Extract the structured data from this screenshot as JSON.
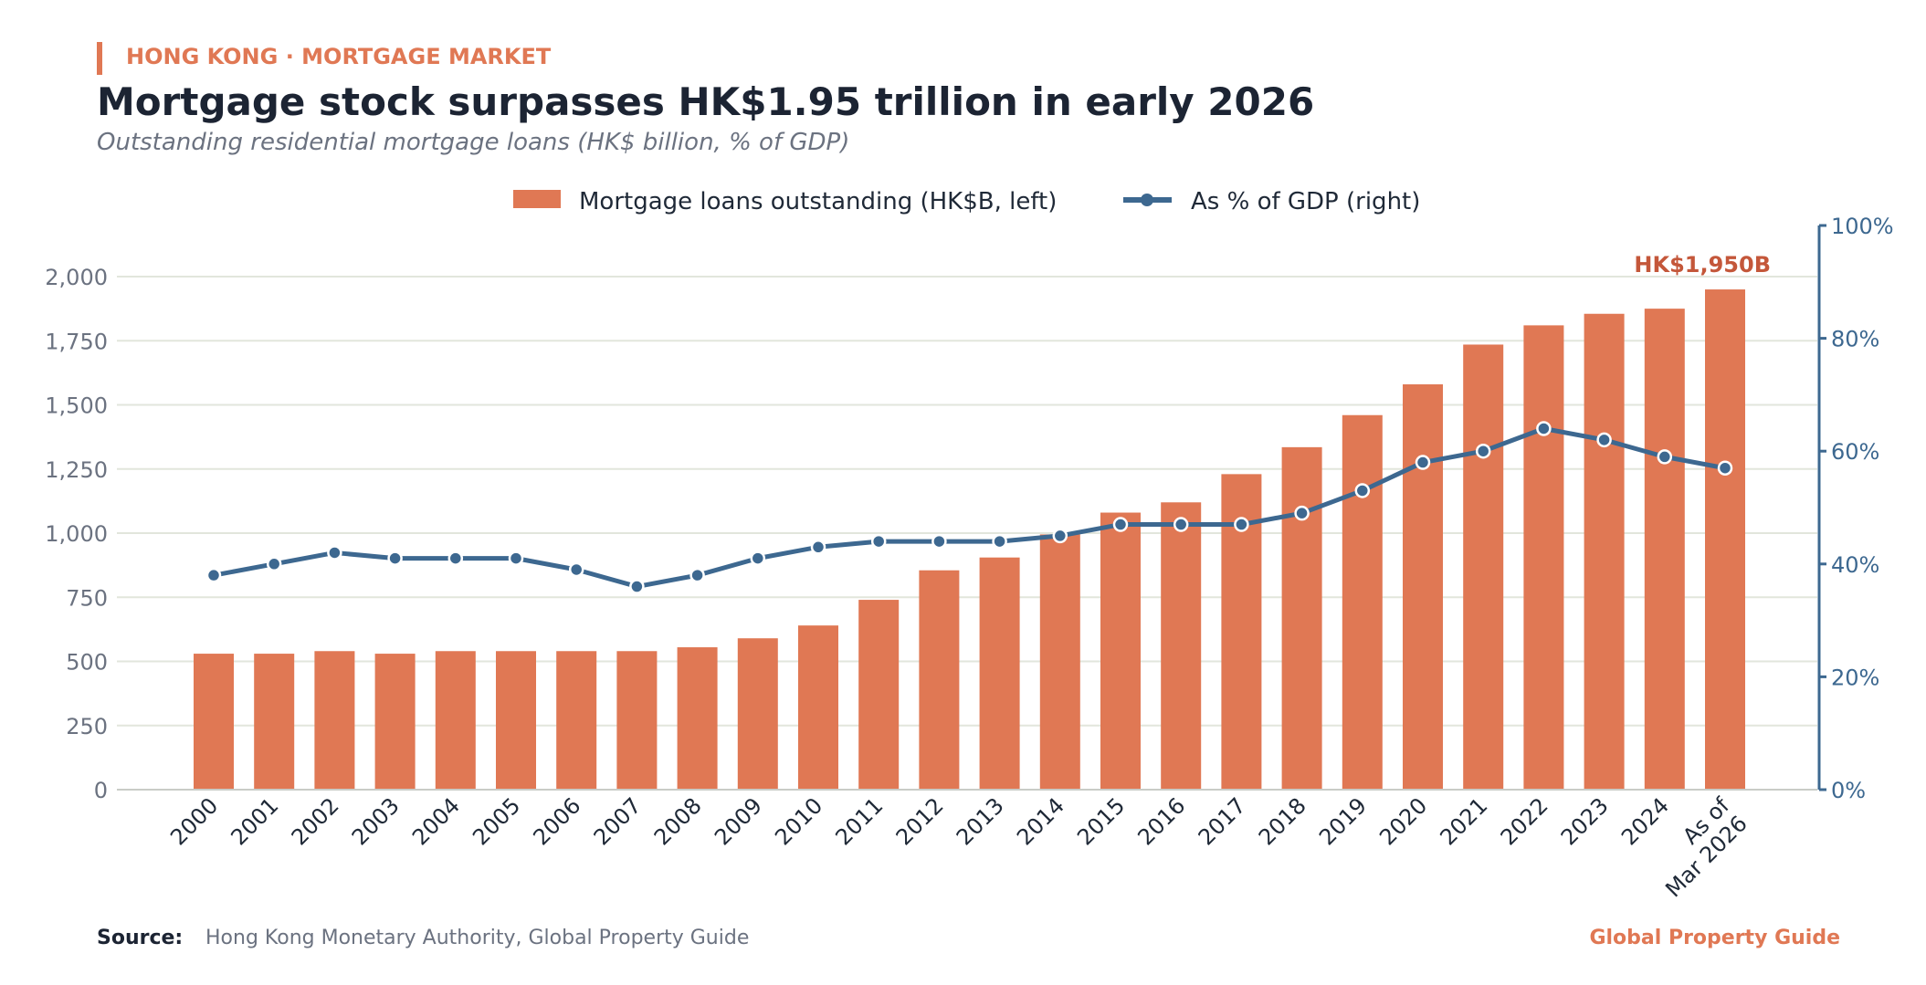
{
  "header": {
    "kicker": "HONG KONG · MORTGAGE MARKET",
    "title": "Mortgage stock surpasses HK$1.95 trillion in early 2026",
    "subtitle": "Outstanding residential mortgage loans (HK$ billion, % of GDP)"
  },
  "footer": {
    "source_label": "Source:",
    "source_text": "Hong Kong Monetary Authority, Global Property Guide",
    "brand": "Global Property Guide"
  },
  "colors": {
    "bar": "#e07854",
    "line": "#3d6890",
    "accent": "#e07854",
    "title": "#1c2433"
  },
  "chart_data": {
    "type": "bar",
    "categories": [
      "2000",
      "2001",
      "2002",
      "2003",
      "2004",
      "2005",
      "2006",
      "2007",
      "2008",
      "2009",
      "2010",
      "2011",
      "2012",
      "2013",
      "2014",
      "2015",
      "2016",
      "2017",
      "2018",
      "2019",
      "2020",
      "2021",
      "2022",
      "2023",
      "2024",
      "As of Mar 2026"
    ],
    "series": [
      {
        "name": "Mortgage loans outstanding (HK$B, left)",
        "type": "bar",
        "axis": "left",
        "values": [
          530,
          530,
          540,
          530,
          540,
          540,
          540,
          540,
          555,
          590,
          640,
          740,
          855,
          905,
          995,
          1080,
          1120,
          1230,
          1335,
          1460,
          1580,
          1735,
          1810,
          1855,
          1875,
          1950
        ]
      },
      {
        "name": "As % of GDP (right)",
        "type": "line",
        "axis": "right",
        "values": [
          38,
          40,
          42,
          41,
          41,
          41,
          39,
          36,
          38,
          41,
          43,
          44,
          44,
          44,
          45,
          47,
          47,
          47,
          49,
          53,
          58,
          60,
          64,
          62,
          59,
          57
        ]
      }
    ],
    "y_left": {
      "ylim": [
        0,
        2000
      ],
      "ticks": [
        0,
        250,
        500,
        750,
        1000,
        1250,
        1500,
        1750,
        2000
      ],
      "tick_labels": [
        "0",
        "250",
        "500",
        "750",
        "1,000",
        "1,250",
        "1,500",
        "1,750",
        "2,000"
      ]
    },
    "y_right": {
      "ylim": [
        0,
        100
      ],
      "ticks": [
        0,
        20,
        40,
        60,
        80,
        100
      ],
      "tick_labels": [
        "0%",
        "20%",
        "40%",
        "60%",
        "80%",
        "100%"
      ]
    },
    "annotation": {
      "text": "HK$1,950B",
      "category": "As of Mar 2026",
      "value": 1950
    },
    "grid": true,
    "legend": "top-center"
  }
}
